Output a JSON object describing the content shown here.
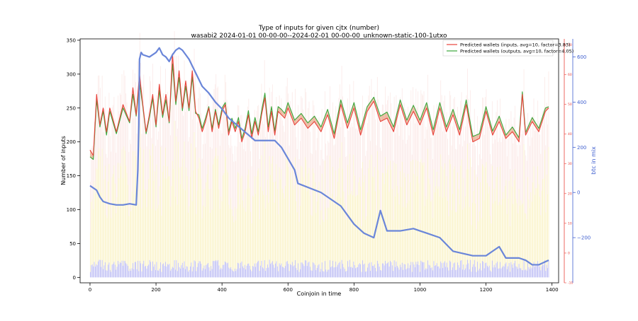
{
  "chart_data": {
    "type": "line",
    "title": "Type of inputs for given cjtx (number)",
    "subtitle": "wasabi2 2024-01-01 00-00-00--2024-02-01 00-00-00_unknown-static-100-1utxo",
    "xlabel": "Coinjoin in time",
    "ylabel": "Number of inputs",
    "y2label": "btc in mix",
    "xlim": [
      -30,
      1420
    ],
    "ylim": [
      -8,
      352
    ],
    "y2lim": [
      -400,
      680
    ],
    "y3lim": [
      -10,
      72
    ],
    "xticks": [
      0,
      200,
      400,
      600,
      800,
      1000,
      1200,
      1400
    ],
    "yticks": [
      0,
      50,
      100,
      150,
      200,
      250,
      300,
      350
    ],
    "y2ticks": [
      -200,
      0,
      200,
      400,
      600
    ],
    "y3ticks": [
      -10,
      0,
      10,
      20,
      30,
      40,
      50,
      60,
      70
    ],
    "grid": false,
    "legend_position": "top-right",
    "colors": {
      "inputs": "#e8423b",
      "outputs": "#3aa63a",
      "btc_in_mix": "#6a86d9",
      "bars_small": "#9999ee",
      "bars_mid": "#f5e27a",
      "bars_large": "#f2b0a8",
      "right_axis_2": "#e8423b"
    },
    "series": [
      {
        "name": "Predicted wallets (inputs, avg=10, factor=3.83)",
        "axis": "left",
        "x": [
          0,
          10,
          20,
          30,
          40,
          50,
          60,
          80,
          100,
          120,
          130,
          140,
          150,
          160,
          170,
          180,
          190,
          200,
          210,
          220,
          230,
          240,
          250,
          260,
          270,
          280,
          290,
          300,
          310,
          320,
          330,
          340,
          350,
          360,
          370,
          380,
          390,
          400,
          410,
          420,
          430,
          440,
          450,
          460,
          470,
          480,
          490,
          500,
          510,
          520,
          530,
          540,
          550,
          560,
          570,
          580,
          590,
          600,
          620,
          640,
          660,
          680,
          700,
          720,
          740,
          760,
          780,
          800,
          820,
          840,
          860,
          880,
          900,
          920,
          940,
          960,
          980,
          1000,
          1020,
          1040,
          1060,
          1080,
          1100,
          1120,
          1140,
          1160,
          1180,
          1200,
          1220,
          1240,
          1260,
          1280,
          1300,
          1310,
          1320,
          1340,
          1360,
          1380,
          1390
        ],
        "values": [
          188,
          180,
          270,
          225,
          250,
          215,
          250,
          215,
          255,
          230,
          280,
          240,
          300,
          255,
          215,
          240,
          270,
          225,
          285,
          240,
          270,
          230,
          330,
          260,
          305,
          250,
          290,
          250,
          305,
          245,
          235,
          215,
          230,
          250,
          215,
          245,
          220,
          245,
          255,
          210,
          230,
          215,
          230,
          200,
          215,
          240,
          205,
          230,
          210,
          240,
          265,
          215,
          245,
          210,
          245,
          240,
          235,
          250,
          225,
          235,
          220,
          230,
          215,
          240,
          205,
          255,
          220,
          250,
          210,
          245,
          260,
          230,
          235,
          215,
          255,
          225,
          245,
          225,
          250,
          210,
          250,
          215,
          240,
          210,
          255,
          200,
          205,
          245,
          210,
          230,
          205,
          215,
          200,
          270,
          210,
          230,
          215,
          245,
          250
        ]
      },
      {
        "name": "Predicted wallets (outputs, avg=10, factor=4.05)",
        "axis": "left",
        "x": [
          0,
          10,
          20,
          30,
          40,
          50,
          60,
          80,
          100,
          120,
          130,
          140,
          150,
          160,
          170,
          180,
          190,
          200,
          210,
          220,
          230,
          240,
          250,
          260,
          270,
          280,
          290,
          300,
          310,
          320,
          330,
          340,
          350,
          360,
          370,
          380,
          390,
          400,
          410,
          420,
          430,
          440,
          450,
          460,
          470,
          480,
          490,
          500,
          510,
          520,
          530,
          540,
          550,
          560,
          570,
          580,
          590,
          600,
          620,
          640,
          660,
          680,
          700,
          720,
          740,
          760,
          780,
          800,
          820,
          840,
          860,
          880,
          900,
          920,
          940,
          960,
          980,
          1000,
          1020,
          1040,
          1060,
          1080,
          1100,
          1120,
          1140,
          1160,
          1180,
          1200,
          1220,
          1240,
          1260,
          1280,
          1300,
          1310,
          1320,
          1340,
          1360,
          1380,
          1390
        ],
        "values": [
          178,
          174,
          262,
          222,
          245,
          210,
          245,
          212,
          250,
          228,
          270,
          238,
          288,
          252,
          212,
          236,
          264,
          222,
          276,
          236,
          262,
          228,
          315,
          255,
          295,
          246,
          282,
          246,
          296,
          242,
          240,
          220,
          235,
          252,
          220,
          248,
          225,
          250,
          258,
          215,
          235,
          220,
          236,
          205,
          220,
          246,
          212,
          236,
          215,
          246,
          272,
          222,
          252,
          216,
          252,
          248,
          242,
          258,
          232,
          242,
          228,
          238,
          222,
          248,
          212,
          262,
          228,
          258,
          218,
          252,
          266,
          238,
          244,
          222,
          262,
          232,
          254,
          232,
          258,
          218,
          258,
          222,
          248,
          218,
          262,
          208,
          212,
          252,
          216,
          238,
          210,
          222,
          206,
          274,
          214,
          236,
          220,
          250,
          252
        ]
      },
      {
        "name": "",
        "label_axis": "btc in mix",
        "axis": "right",
        "x": [
          0,
          10,
          20,
          30,
          40,
          60,
          80,
          100,
          120,
          140,
          145,
          148,
          150,
          155,
          160,
          180,
          200,
          210,
          220,
          230,
          240,
          250,
          260,
          270,
          280,
          290,
          300,
          320,
          340,
          360,
          380,
          400,
          410,
          420,
          500,
          560,
          580,
          600,
          620,
          630,
          700,
          760,
          770,
          780,
          800,
          830,
          860,
          880,
          900,
          940,
          980,
          1000,
          1020,
          1060,
          1100,
          1160,
          1200,
          1220,
          1240,
          1260,
          1300,
          1320,
          1340,
          1360,
          1390
        ],
        "values": [
          30,
          20,
          10,
          -20,
          -40,
          -50,
          -55,
          -55,
          -50,
          -55,
          100,
          300,
          590,
          620,
          610,
          600,
          620,
          640,
          610,
          600,
          580,
          610,
          630,
          640,
          630,
          610,
          590,
          530,
          470,
          440,
          400,
          370,
          350,
          330,
          230,
          230,
          200,
          150,
          100,
          40,
          0,
          -60,
          -80,
          -100,
          -140,
          -180,
          -200,
          -80,
          -170,
          -170,
          -160,
          -170,
          -180,
          -200,
          -260,
          -280,
          -280,
          -260,
          -240,
          -290,
          -290,
          -300,
          -320,
          -320,
          -300
        ]
      }
    ]
  }
}
